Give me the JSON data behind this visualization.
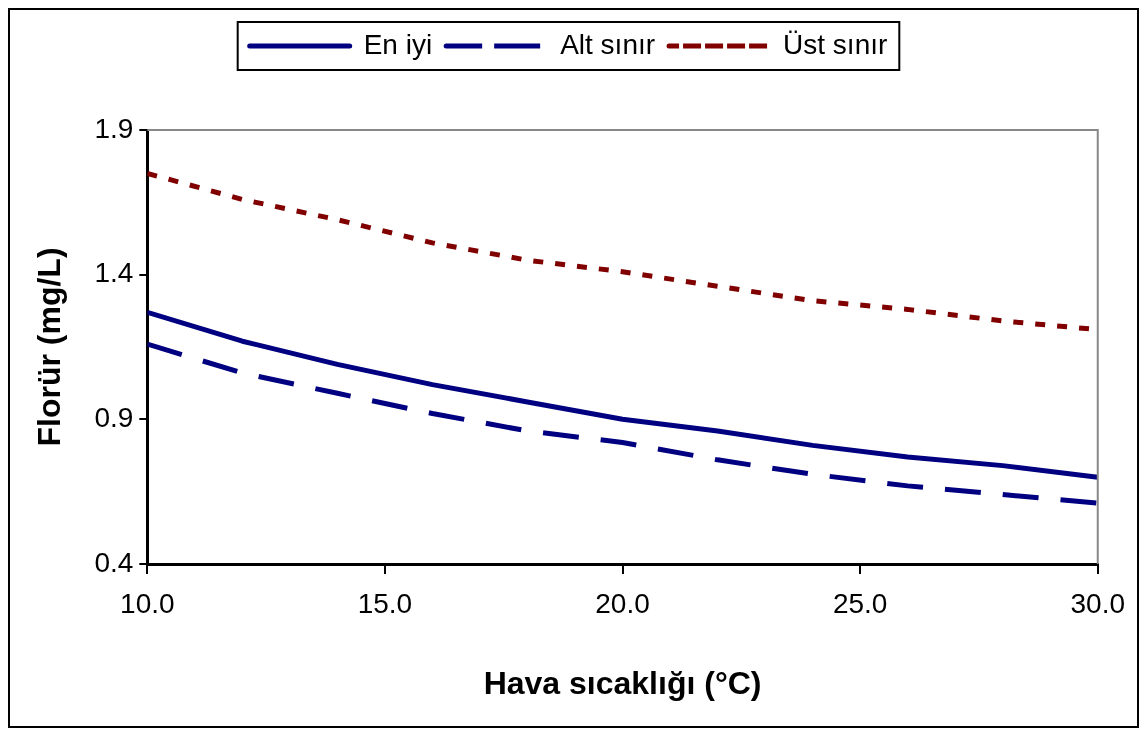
{
  "chart_data": {
    "type": "line",
    "xlabel": "Hava sıcaklığı (°C)",
    "ylabel": "Florür (mg/L)",
    "x": [
      10,
      12,
      14,
      16,
      18,
      20,
      22,
      24,
      26,
      28,
      30
    ],
    "series": [
      {
        "name": "En iyi",
        "color": "#000080",
        "line_style": "solid",
        "values": [
          1.27,
          1.17,
          1.09,
          1.02,
          0.96,
          0.9,
          0.86,
          0.81,
          0.77,
          0.74,
          0.7
        ]
      },
      {
        "name": "Alt sınır",
        "color": "#000080",
        "line_style": "dashed",
        "values": [
          1.16,
          1.06,
          0.99,
          0.92,
          0.86,
          0.82,
          0.76,
          0.71,
          0.67,
          0.64,
          0.61
        ]
      },
      {
        "name": "Üst sınır",
        "color": "#800000",
        "line_style": "dotted",
        "values": [
          1.75,
          1.66,
          1.59,
          1.51,
          1.45,
          1.41,
          1.36,
          1.31,
          1.28,
          1.24,
          1.21
        ]
      }
    ],
    "xlim": [
      10,
      30
    ],
    "xticks": [
      {
        "value": 10,
        "label": "10.0"
      },
      {
        "value": 15,
        "label": "15.0"
      },
      {
        "value": 20,
        "label": "20.0"
      },
      {
        "value": 25,
        "label": "25.0"
      },
      {
        "value": 30,
        "label": "30.0"
      }
    ],
    "ylim": [
      0.4,
      1.9
    ],
    "yticks": [
      0.4,
      0.9,
      1.4,
      1.9
    ],
    "grid": false,
    "legend": "top",
    "marker": "none"
  }
}
